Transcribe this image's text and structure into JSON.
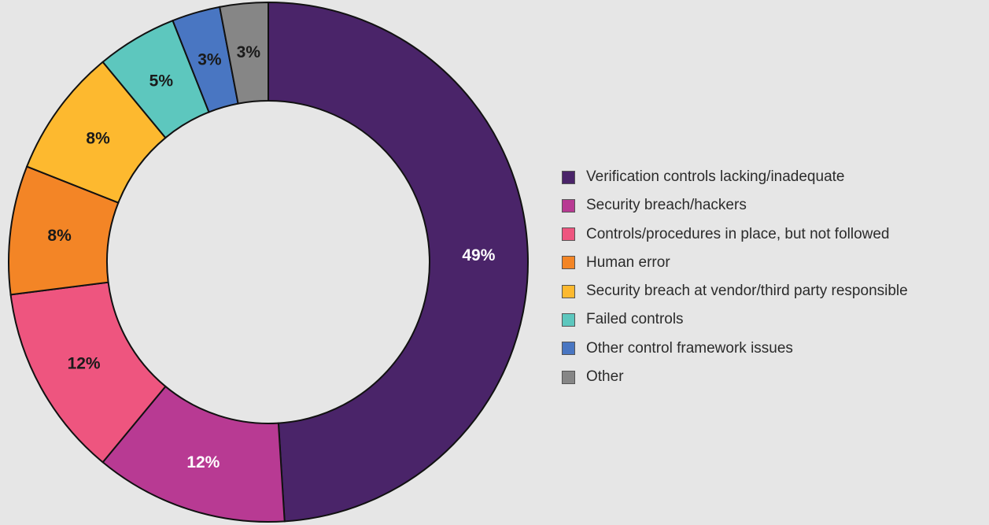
{
  "chart_data": {
    "type": "pie",
    "categories": [
      "Verification controls lacking/inadequate",
      "Security breach/hackers",
      "Controls/procedures in place, but not followed",
      "Human error",
      "Security breach at vendor/third party responsible",
      "Failed controls",
      "Other control framework issues",
      "Other"
    ],
    "values": [
      49,
      12,
      12,
      8,
      8,
      5,
      3,
      3
    ],
    "data_labels": [
      "49%",
      "12%",
      "12%",
      "8%",
      "8%",
      "5%",
      "3%",
      "3%"
    ],
    "colors": [
      "#4a2469",
      "#b83a93",
      "#ee557f",
      "#f38526",
      "#fdb92f",
      "#5dc7be",
      "#4976c2",
      "#868686"
    ],
    "label_colors": [
      "#ffffff",
      "#ffffff",
      "#1a1a1a",
      "#1a1a1a",
      "#1a1a1a",
      "#1a1a1a",
      "#1a1a1a",
      "#1a1a1a"
    ],
    "donut": true,
    "legend_position": "right"
  }
}
